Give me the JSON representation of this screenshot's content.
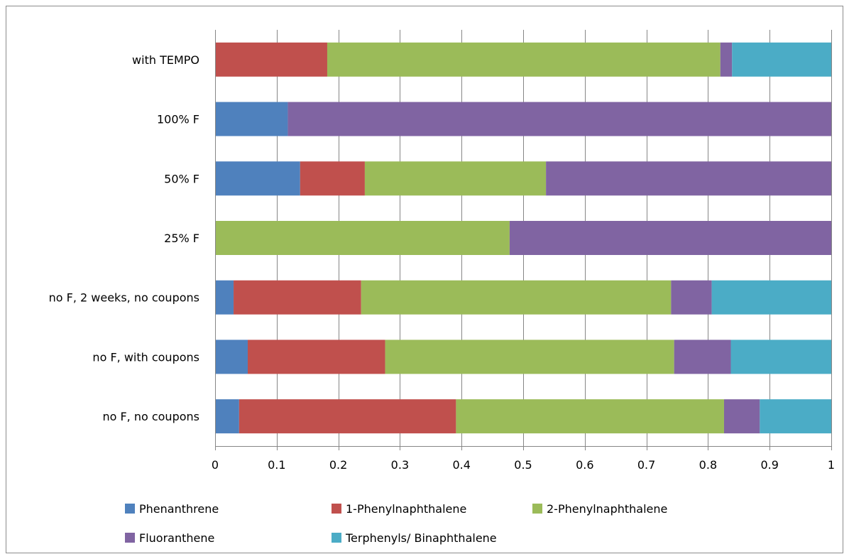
{
  "chart_data": {
    "type": "bar",
    "orientation": "horizontal",
    "stacked": true,
    "categories": [
      "with TEMPO",
      "100% F",
      "50% F",
      "25% F",
      "no F, 2 weeks, no coupons",
      "no F, with coupons",
      "no F, no coupons"
    ],
    "series": [
      {
        "name": "Phenanthrene",
        "color": "#4F81BD",
        "values": [
          0,
          0.118,
          0.138,
          0,
          0.03,
          0.053,
          0.039
        ]
      },
      {
        "name": "1-Phenylnaphthalene",
        "color": "#C0504D",
        "values": [
          0.182,
          0,
          0.105,
          0,
          0.207,
          0.223,
          0.352
        ]
      },
      {
        "name": "2-Phenylnaphthalene",
        "color": "#9BBB59",
        "values": [
          0.638,
          0,
          0.294,
          0.478,
          0.503,
          0.469,
          0.435
        ]
      },
      {
        "name": "Fluoranthene",
        "color": "#8064A2",
        "values": [
          0.019,
          0.882,
          0.463,
          0.522,
          0.066,
          0.092,
          0.058
        ]
      },
      {
        "name": "Terphenyls/ Binaphthalene",
        "color": "#4BACC6",
        "values": [
          0.161,
          0,
          0,
          0,
          0.194,
          0.163,
          0.116
        ]
      }
    ],
    "xlim": [
      0,
      1
    ],
    "xticks": [
      "0",
      "0.1",
      "0.2",
      "0.3",
      "0.4",
      "0.5",
      "0.6",
      "0.7",
      "0.8",
      "0.9",
      "1"
    ],
    "grid": "vertical",
    "legend_position": "bottom",
    "title": "",
    "xlabel": "",
    "ylabel": ""
  }
}
